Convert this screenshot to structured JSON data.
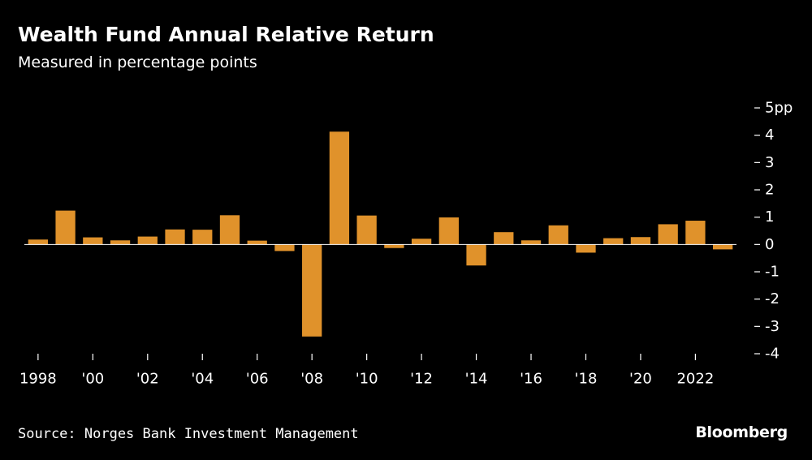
{
  "title": "Wealth Fund Annual Relative Return",
  "subtitle": "Measured in percentage points",
  "source": "Source: Norges Bank Investment Management",
  "brand": "Bloomberg",
  "colors": {
    "background": "#000000",
    "bar": "#e0922b",
    "axis": "#ffffff",
    "text": "#ffffff"
  },
  "chart_data": {
    "type": "bar",
    "title": "Wealth Fund Annual Relative Return",
    "subtitle": "Measured in percentage points",
    "ylabel": "pp",
    "ylim": [
      -4,
      5
    ],
    "y_ticks": [
      5,
      4,
      3,
      2,
      1,
      0,
      -1,
      -2,
      -3,
      -4
    ],
    "y_tick_labels": [
      "5pp",
      "4",
      "3",
      "2",
      "1",
      "0",
      "-1",
      "-2",
      "-3",
      "-4"
    ],
    "x_tick_years": [
      1998,
      2000,
      2002,
      2004,
      2006,
      2008,
      2010,
      2012,
      2014,
      2016,
      2018,
      2020,
      2022
    ],
    "x_tick_labels": [
      "1998",
      "'00",
      "'02",
      "'04",
      "'06",
      "'08",
      "'10",
      "'12",
      "'14",
      "'16",
      "'18",
      "'20",
      "2022"
    ],
    "categories": [
      1998,
      1999,
      2000,
      2001,
      2002,
      2003,
      2004,
      2005,
      2006,
      2007,
      2008,
      2009,
      2010,
      2011,
      2012,
      2013,
      2014,
      2015,
      2016,
      2017,
      2018,
      2019,
      2020,
      2021,
      2022,
      2023
    ],
    "values": [
      0.18,
      1.24,
      0.26,
      0.15,
      0.29,
      0.55,
      0.54,
      1.07,
      0.14,
      -0.24,
      -3.37,
      4.13,
      1.06,
      -0.13,
      0.21,
      0.99,
      -0.77,
      0.45,
      0.15,
      0.7,
      -0.3,
      0.23,
      0.27,
      0.74,
      0.87,
      -0.18
    ],
    "grid": false,
    "legend": "none"
  }
}
